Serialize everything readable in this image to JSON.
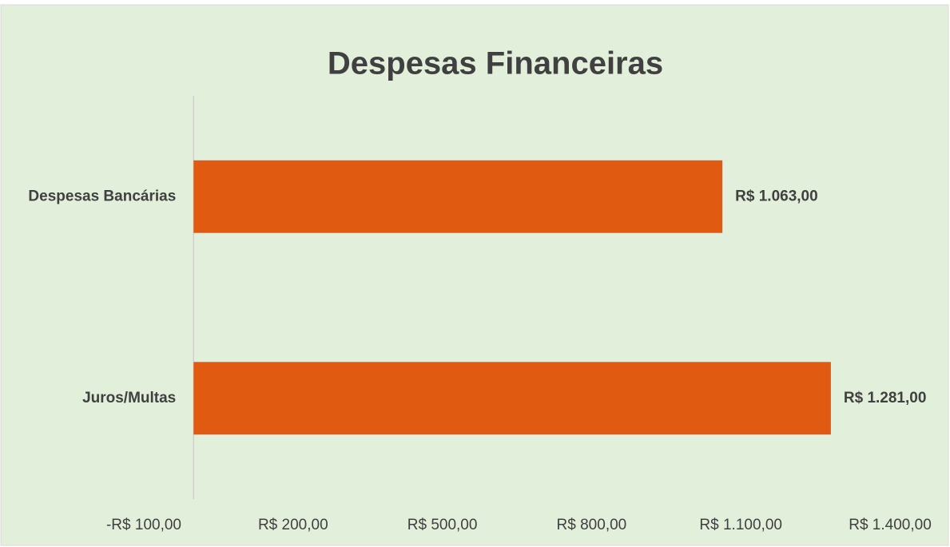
{
  "chart_data": {
    "type": "hbar",
    "title": "Despesas Financeiras",
    "categories": [
      "Despesas Bancárias",
      "Juros/Multas"
    ],
    "values": [
      1063,
      1281
    ],
    "value_labels": [
      "R$ 1.063,00",
      "R$ 1.281,00"
    ],
    "color": "#e05a12",
    "xlim": [
      -100,
      1400
    ],
    "xticks": [
      {
        "value": -100,
        "label": "-R$ 100,00"
      },
      {
        "value": 200,
        "label": "R$ 200,00"
      },
      {
        "value": 500,
        "label": "R$ 500,00"
      },
      {
        "value": 800,
        "label": "R$ 800,00"
      },
      {
        "value": 1100,
        "label": "R$ 1.100,00"
      },
      {
        "value": 1400,
        "label": "R$ 1.400,00"
      }
    ],
    "grid": false
  }
}
